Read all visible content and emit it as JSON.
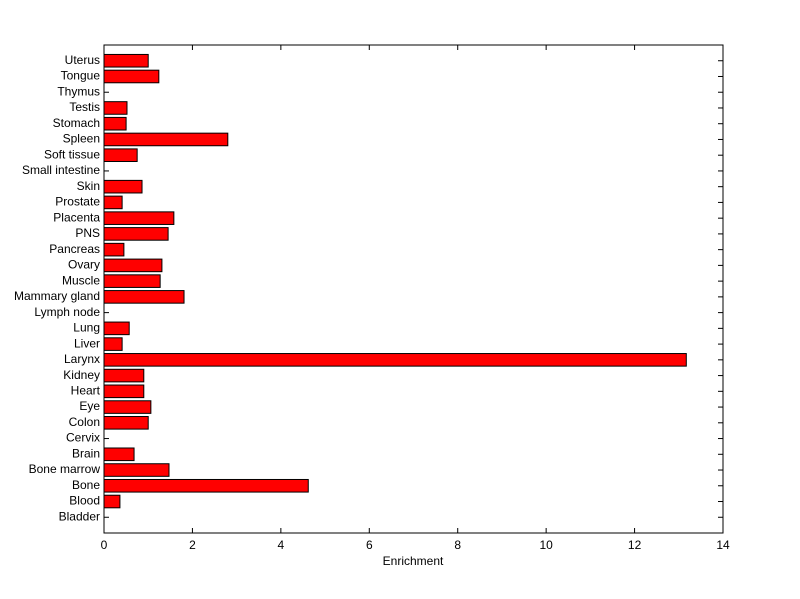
{
  "chart_data": {
    "type": "barh",
    "x_label": "Enrichment",
    "color": "#ff0000",
    "categories": [
      "Bladder",
      "Blood",
      "Bone",
      "Bone marrow",
      "Brain",
      "Cervix",
      "Colon",
      "Eye",
      "Heart",
      "Kidney",
      "Larynx",
      "Liver",
      "Lung",
      "Lymph node",
      "Mammary gland",
      "Muscle",
      "Ovary",
      "Pancreas",
      "PNS",
      "Placenta",
      "Prostate",
      "Skin",
      "Small intestine",
      "Soft tissue",
      "Spleen",
      "Stomach",
      "Testis",
      "Thymus",
      "Tongue",
      "Uterus"
    ],
    "values": [
      0,
      0.36,
      4.62,
      1.47,
      0.68,
      0,
      1.0,
      1.06,
      0.9,
      0.9,
      13.17,
      0.41,
      0.57,
      0,
      1.81,
      1.27,
      1.31,
      0.45,
      1.45,
      1.58,
      0.41,
      0.86,
      0,
      0.75,
      2.8,
      0.5,
      0.52,
      0,
      1.24,
      1.0
    ],
    "xlim": [
      0,
      14
    ],
    "xticks": [
      0,
      2,
      4,
      6,
      8,
      10,
      12,
      14
    ]
  }
}
